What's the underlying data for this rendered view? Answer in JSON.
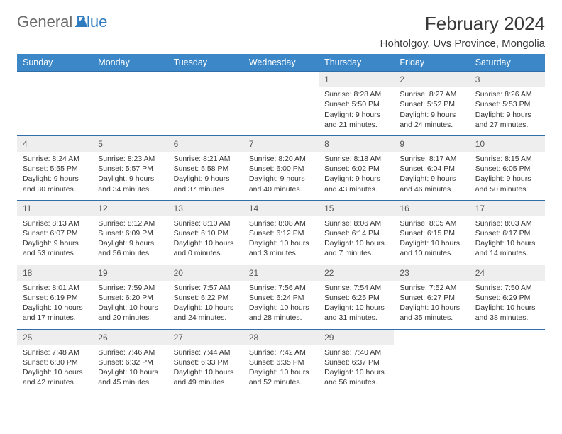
{
  "brand": {
    "word1": "General",
    "word2": "Blue"
  },
  "title": {
    "month": "February 2024",
    "location": "Hohtolgoy, Uvs Province, Mongolia"
  },
  "weekdays": [
    "Sunday",
    "Monday",
    "Tuesday",
    "Wednesday",
    "Thursday",
    "Friday",
    "Saturday"
  ],
  "colors": {
    "headerBg": "#3b87c8",
    "headerText": "#ffffff",
    "dayNumBg": "#eeeeee",
    "rowBorder": "#2f6ea6",
    "bodyText": "#333333",
    "brandBlue": "#2f7bbf"
  },
  "weeks": [
    [
      null,
      null,
      null,
      null,
      {
        "n": "1",
        "sunrise": "8:28 AM",
        "sunset": "5:50 PM",
        "daylight": "9 hours and 21 minutes."
      },
      {
        "n": "2",
        "sunrise": "8:27 AM",
        "sunset": "5:52 PM",
        "daylight": "9 hours and 24 minutes."
      },
      {
        "n": "3",
        "sunrise": "8:26 AM",
        "sunset": "5:53 PM",
        "daylight": "9 hours and 27 minutes."
      }
    ],
    [
      {
        "n": "4",
        "sunrise": "8:24 AM",
        "sunset": "5:55 PM",
        "daylight": "9 hours and 30 minutes."
      },
      {
        "n": "5",
        "sunrise": "8:23 AM",
        "sunset": "5:57 PM",
        "daylight": "9 hours and 34 minutes."
      },
      {
        "n": "6",
        "sunrise": "8:21 AM",
        "sunset": "5:58 PM",
        "daylight": "9 hours and 37 minutes."
      },
      {
        "n": "7",
        "sunrise": "8:20 AM",
        "sunset": "6:00 PM",
        "daylight": "9 hours and 40 minutes."
      },
      {
        "n": "8",
        "sunrise": "8:18 AM",
        "sunset": "6:02 PM",
        "daylight": "9 hours and 43 minutes."
      },
      {
        "n": "9",
        "sunrise": "8:17 AM",
        "sunset": "6:04 PM",
        "daylight": "9 hours and 46 minutes."
      },
      {
        "n": "10",
        "sunrise": "8:15 AM",
        "sunset": "6:05 PM",
        "daylight": "9 hours and 50 minutes."
      }
    ],
    [
      {
        "n": "11",
        "sunrise": "8:13 AM",
        "sunset": "6:07 PM",
        "daylight": "9 hours and 53 minutes."
      },
      {
        "n": "12",
        "sunrise": "8:12 AM",
        "sunset": "6:09 PM",
        "daylight": "9 hours and 56 minutes."
      },
      {
        "n": "13",
        "sunrise": "8:10 AM",
        "sunset": "6:10 PM",
        "daylight": "10 hours and 0 minutes."
      },
      {
        "n": "14",
        "sunrise": "8:08 AM",
        "sunset": "6:12 PM",
        "daylight": "10 hours and 3 minutes."
      },
      {
        "n": "15",
        "sunrise": "8:06 AM",
        "sunset": "6:14 PM",
        "daylight": "10 hours and 7 minutes."
      },
      {
        "n": "16",
        "sunrise": "8:05 AM",
        "sunset": "6:15 PM",
        "daylight": "10 hours and 10 minutes."
      },
      {
        "n": "17",
        "sunrise": "8:03 AM",
        "sunset": "6:17 PM",
        "daylight": "10 hours and 14 minutes."
      }
    ],
    [
      {
        "n": "18",
        "sunrise": "8:01 AM",
        "sunset": "6:19 PM",
        "daylight": "10 hours and 17 minutes."
      },
      {
        "n": "19",
        "sunrise": "7:59 AM",
        "sunset": "6:20 PM",
        "daylight": "10 hours and 20 minutes."
      },
      {
        "n": "20",
        "sunrise": "7:57 AM",
        "sunset": "6:22 PM",
        "daylight": "10 hours and 24 minutes."
      },
      {
        "n": "21",
        "sunrise": "7:56 AM",
        "sunset": "6:24 PM",
        "daylight": "10 hours and 28 minutes."
      },
      {
        "n": "22",
        "sunrise": "7:54 AM",
        "sunset": "6:25 PM",
        "daylight": "10 hours and 31 minutes."
      },
      {
        "n": "23",
        "sunrise": "7:52 AM",
        "sunset": "6:27 PM",
        "daylight": "10 hours and 35 minutes."
      },
      {
        "n": "24",
        "sunrise": "7:50 AM",
        "sunset": "6:29 PM",
        "daylight": "10 hours and 38 minutes."
      }
    ],
    [
      {
        "n": "25",
        "sunrise": "7:48 AM",
        "sunset": "6:30 PM",
        "daylight": "10 hours and 42 minutes."
      },
      {
        "n": "26",
        "sunrise": "7:46 AM",
        "sunset": "6:32 PM",
        "daylight": "10 hours and 45 minutes."
      },
      {
        "n": "27",
        "sunrise": "7:44 AM",
        "sunset": "6:33 PM",
        "daylight": "10 hours and 49 minutes."
      },
      {
        "n": "28",
        "sunrise": "7:42 AM",
        "sunset": "6:35 PM",
        "daylight": "10 hours and 52 minutes."
      },
      {
        "n": "29",
        "sunrise": "7:40 AM",
        "sunset": "6:37 PM",
        "daylight": "10 hours and 56 minutes."
      },
      null,
      null
    ]
  ],
  "labels": {
    "sunrise": "Sunrise:",
    "sunset": "Sunset:",
    "daylight": "Daylight:"
  }
}
